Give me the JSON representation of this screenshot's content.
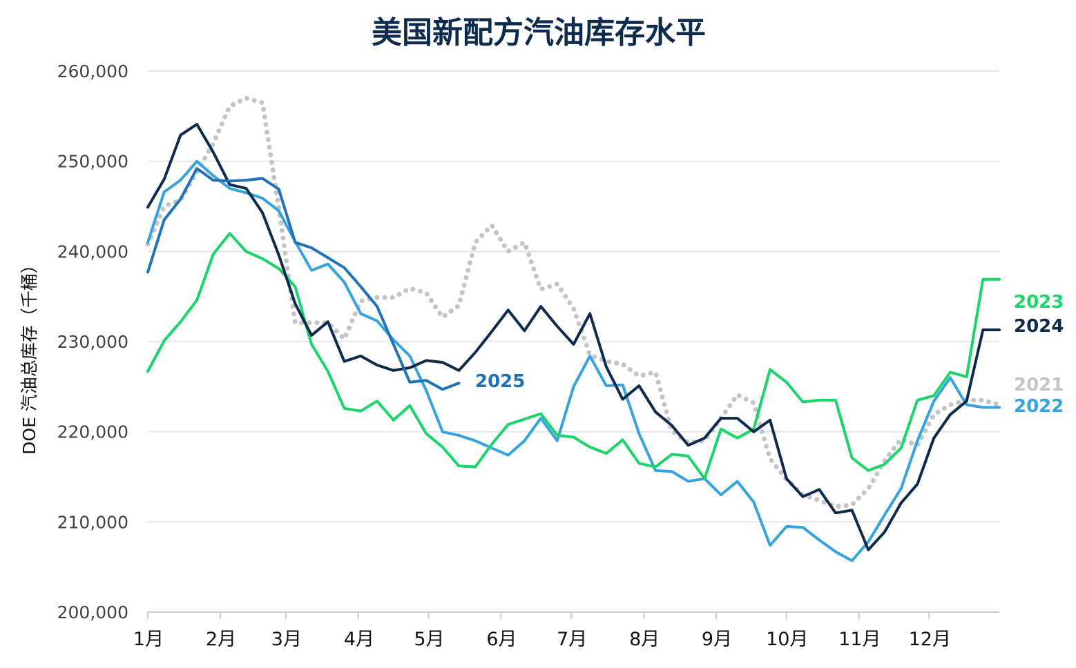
{
  "chart_data": {
    "type": "line",
    "title": "美国新配方汽油库存水平",
    "ylabel": "DOE 汽油总库存（千桶）",
    "xlabel": "",
    "ylim": [
      200000,
      260000
    ],
    "y_ticks": [
      200000,
      210000,
      220000,
      230000,
      240000,
      250000,
      260000
    ],
    "y_tick_labels": [
      "200,000",
      "210,000",
      "220,000",
      "230,000",
      "240,000",
      "250,000",
      "260,000"
    ],
    "x_unit": "week",
    "xlim": [
      1,
      53
    ],
    "x_ticks": [
      1,
      5.43,
      9.43,
      13.86,
      18.14,
      22.57,
      26.86,
      31.29,
      35.71,
      40,
      44.43,
      48.71
    ],
    "x_tick_labels": [
      "1月",
      "2月",
      "3月",
      "4月",
      "5月",
      "6月",
      "7月",
      "8月",
      "9月",
      "10月",
      "11月",
      "12月"
    ],
    "grid": true,
    "legend": "inline labels at right end of each line",
    "series": [
      {
        "name": "2021",
        "color": "#c2c5ca",
        "style": "dotted",
        "x": [
          1,
          2,
          3,
          4,
          5,
          6,
          7,
          8,
          9,
          10,
          11,
          12,
          13,
          14,
          15,
          16,
          17,
          18,
          19,
          20,
          21,
          22,
          23,
          24,
          25,
          26,
          27,
          28,
          29,
          30,
          31,
          32,
          33,
          34,
          35,
          36,
          37,
          38,
          39,
          40,
          41,
          42,
          43,
          44,
          45,
          46,
          47,
          48,
          49,
          50,
          51,
          52,
          53
        ],
        "values": [
          240800,
          245000,
          245700,
          248800,
          252000,
          256100,
          257000,
          256500,
          244800,
          232100,
          232100,
          232100,
          230300,
          234500,
          234900,
          234900,
          235900,
          235400,
          232700,
          234000,
          241000,
          242900,
          240000,
          241000,
          235800,
          236400,
          233700,
          228500,
          227800,
          227500,
          226200,
          226600,
          220100,
          218800,
          219000,
          221500,
          224100,
          223200,
          217000,
          214700,
          213000,
          212400,
          211700,
          211900,
          213700,
          216800,
          219200,
          218500,
          221900,
          223000,
          223500,
          223500,
          223000
        ],
        "label": "2021"
      },
      {
        "name": "2022",
        "color": "#35a3e0",
        "style": "solid",
        "x": [
          1,
          2,
          3,
          4,
          5,
          6,
          7,
          8,
          9,
          10,
          11,
          12,
          13,
          14,
          15,
          16,
          17,
          18,
          19,
          20,
          21,
          22,
          23,
          24,
          25,
          26,
          27,
          28,
          29,
          30,
          31,
          32,
          33,
          34,
          35,
          36,
          37,
          38,
          39,
          40,
          41,
          42,
          43,
          44,
          45,
          46,
          47,
          48,
          49,
          50,
          51,
          52,
          53
        ],
        "values": [
          241000,
          246600,
          247900,
          250000,
          248400,
          247000,
          246500,
          245900,
          244500,
          241100,
          237900,
          238600,
          236600,
          233100,
          232300,
          230200,
          228400,
          224600,
          220000,
          219600,
          219000,
          218200,
          217400,
          219000,
          221500,
          219000,
          225000,
          228400,
          225100,
          225200,
          219800,
          215700,
          215600,
          214500,
          214800,
          213000,
          214500,
          212200,
          207400,
          209500,
          209400,
          208000,
          206700,
          205700,
          207800,
          210800,
          213700,
          219000,
          223400,
          226000,
          223000,
          222700,
          222700
        ],
        "label": "2022"
      },
      {
        "name": "2023",
        "color": "#1bd46a",
        "style": "solid",
        "x": [
          1,
          2,
          3,
          4,
          5,
          6,
          7,
          8,
          9,
          10,
          11,
          12,
          13,
          14,
          15,
          16,
          17,
          18,
          19,
          20,
          21,
          22,
          23,
          24,
          25,
          26,
          27,
          28,
          29,
          30,
          31,
          32,
          33,
          34,
          35,
          36,
          37,
          38,
          39,
          40,
          41,
          42,
          43,
          44,
          45,
          46,
          47,
          48,
          49,
          50,
          51,
          52,
          53
        ],
        "values": [
          226700,
          230100,
          232200,
          234600,
          239700,
          242000,
          240000,
          239200,
          238100,
          236100,
          229700,
          226700,
          222600,
          222300,
          223400,
          221300,
          222900,
          219800,
          218300,
          216200,
          216100,
          218600,
          220800,
          221400,
          222000,
          219600,
          219400,
          218300,
          217600,
          219100,
          216500,
          216100,
          217500,
          217300,
          214800,
          220300,
          219300,
          220300,
          226900,
          225500,
          223300,
          223500,
          223500,
          217100,
          215700,
          216400,
          218200,
          223500,
          224000,
          226600,
          226100,
          236900,
          236900
        ],
        "label": "2023"
      },
      {
        "name": "2024",
        "color": "#0e2a4d",
        "style": "solid",
        "x": [
          1,
          2,
          3,
          4,
          5,
          6,
          7,
          8,
          9,
          10,
          11,
          12,
          13,
          14,
          15,
          16,
          17,
          18,
          19,
          20,
          21,
          22,
          23,
          24,
          25,
          26,
          27,
          28,
          29,
          30,
          31,
          32,
          33,
          34,
          35,
          36,
          37,
          38,
          39,
          40,
          41,
          42,
          43,
          44,
          45,
          46,
          47,
          48,
          49,
          50,
          51,
          52,
          53
        ],
        "values": [
          244900,
          248000,
          252900,
          254100,
          251000,
          247400,
          247000,
          244300,
          239600,
          234200,
          230700,
          232200,
          227800,
          228400,
          227400,
          226800,
          227100,
          227900,
          227700,
          226800,
          228800,
          231100,
          233500,
          231200,
          233900,
          231700,
          229700,
          233100,
          227200,
          223600,
          225100,
          222200,
          220700,
          218500,
          219300,
          221500,
          221500,
          220000,
          221300,
          214800,
          212800,
          213600,
          211000,
          211300,
          206900,
          208900,
          212100,
          214200,
          219300,
          221900,
          223400,
          231300,
          231300
        ],
        "label": "2024"
      },
      {
        "name": "2025",
        "color": "#1f72b8",
        "style": "solid",
        "x": [
          1,
          2,
          3,
          4,
          5,
          6,
          7,
          8,
          9,
          10,
          11,
          12,
          13,
          14,
          15,
          16,
          17,
          18,
          19,
          20
        ],
        "values": [
          237700,
          243500,
          245800,
          249200,
          247900,
          247800,
          247900,
          248100,
          246900,
          241000,
          240400,
          239300,
          238200,
          236100,
          233900,
          229700,
          225500,
          225700,
          224700,
          225400
        ],
        "label": "2025"
      }
    ]
  }
}
